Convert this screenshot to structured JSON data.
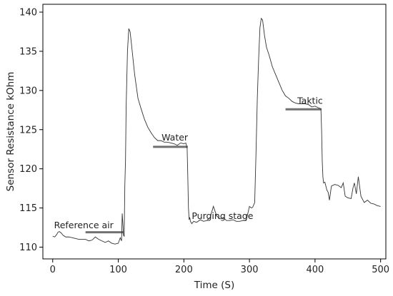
{
  "chart_data": {
    "type": "line",
    "title": "",
    "xlabel": "Time (S)",
    "ylabel": "Sensor Resistance kOhm",
    "xlim": [
      -15,
      508
    ],
    "ylim": [
      108.5,
      141.0
    ],
    "xticks": [
      0,
      100,
      200,
      300,
      400,
      500
    ],
    "yticks": [
      110,
      115,
      120,
      125,
      130,
      135,
      140
    ],
    "grid": false,
    "line_color": "#333333",
    "marker_color": "#707070",
    "series": [
      {
        "x": [
          0,
          3,
          6,
          8,
          10,
          13,
          16,
          20,
          25,
          30,
          35,
          40,
          45,
          50,
          55,
          60,
          65,
          70,
          75,
          80,
          85,
          90,
          95,
          100,
          103,
          105,
          106,
          107,
          108,
          109,
          110,
          111,
          112,
          114,
          116,
          118,
          120,
          125,
          130,
          135,
          140,
          145,
          150,
          155,
          160,
          165,
          170,
          175,
          180,
          185,
          190,
          195,
          200,
          203,
          205,
          206,
          207,
          208,
          209,
          210,
          212,
          215,
          218,
          220,
          225,
          230,
          235,
          240,
          245,
          250,
          255,
          260,
          265,
          270,
          275,
          280,
          285,
          290,
          295,
          300,
          303,
          305,
          308,
          310,
          312,
          314,
          316,
          318,
          320,
          323,
          326,
          330,
          335,
          340,
          345,
          350,
          355,
          360,
          365,
          370,
          375,
          380,
          385,
          390,
          395,
          400,
          405,
          408,
          409,
          410,
          411,
          412,
          413,
          415,
          418,
          420,
          422,
          425,
          430,
          435,
          440,
          443,
          446,
          450,
          455,
          458,
          460,
          463,
          466,
          470,
          475,
          480,
          485,
          490,
          495,
          500
        ],
        "y": [
          111.4,
          111.3,
          111.6,
          111.9,
          112.0,
          111.8,
          111.5,
          111.3,
          111.3,
          111.2,
          111.1,
          111.0,
          111.0,
          111.0,
          110.8,
          110.9,
          111.3,
          111.0,
          110.8,
          110.6,
          110.8,
          110.5,
          110.4,
          110.5,
          111.2,
          110.8,
          114.3,
          113.0,
          111.5,
          111.4,
          118.0,
          121.0,
          128.0,
          135.0,
          137.9,
          137.5,
          136.0,
          132.0,
          129.0,
          127.6,
          126.3,
          125.3,
          124.6,
          124.0,
          123.6,
          123.6,
          123.4,
          123.4,
          123.3,
          123.2,
          123.0,
          123.3,
          123.2,
          123.3,
          122.6,
          119.0,
          115.0,
          113.5,
          113.8,
          113.3,
          113.0,
          113.3,
          113.2,
          113.2,
          113.5,
          113.3,
          113.4,
          113.8,
          115.2,
          114.0,
          113.6,
          113.8,
          113.4,
          113.4,
          113.5,
          113.3,
          113.3,
          113.4,
          113.4,
          115.2,
          115.0,
          115.1,
          115.7,
          122.0,
          129.0,
          134.0,
          138.0,
          139.2,
          139.0,
          137.0,
          135.5,
          134.5,
          133.0,
          132.0,
          131.0,
          130.0,
          129.3,
          129.0,
          128.6,
          128.4,
          128.3,
          128.3,
          128.3,
          128.2,
          127.9,
          128.0,
          127.8,
          127.7,
          127.6,
          125.0,
          121.0,
          119.0,
          118.2,
          118.3,
          117.3,
          117.0,
          116.0,
          117.8,
          118.0,
          117.9,
          117.6,
          118.2,
          116.5,
          116.3,
          116.2,
          117.6,
          118.2,
          116.8,
          119.0,
          116.5,
          115.7,
          116.0,
          115.6,
          115.5,
          115.3,
          115.2
        ]
      }
    ],
    "annotations": [
      {
        "text": "Reference air",
        "x_text": 2,
        "y_text": 112.4,
        "bar_x": [
          50,
          108
        ],
        "bar_y": 111.9
      },
      {
        "text": "Water",
        "x_text": 166,
        "y_text": 123.6,
        "bar_x": [
          153,
          206
        ],
        "bar_y": 122.8
      },
      {
        "text": "Purging stage",
        "x_text": 212,
        "y_text": 113.6,
        "bar_x": null,
        "bar_y": null
      },
      {
        "text": "Taktic",
        "x_text": 373,
        "y_text": 128.3,
        "bar_x": [
          355,
          410
        ],
        "bar_y": 127.6
      }
    ]
  }
}
